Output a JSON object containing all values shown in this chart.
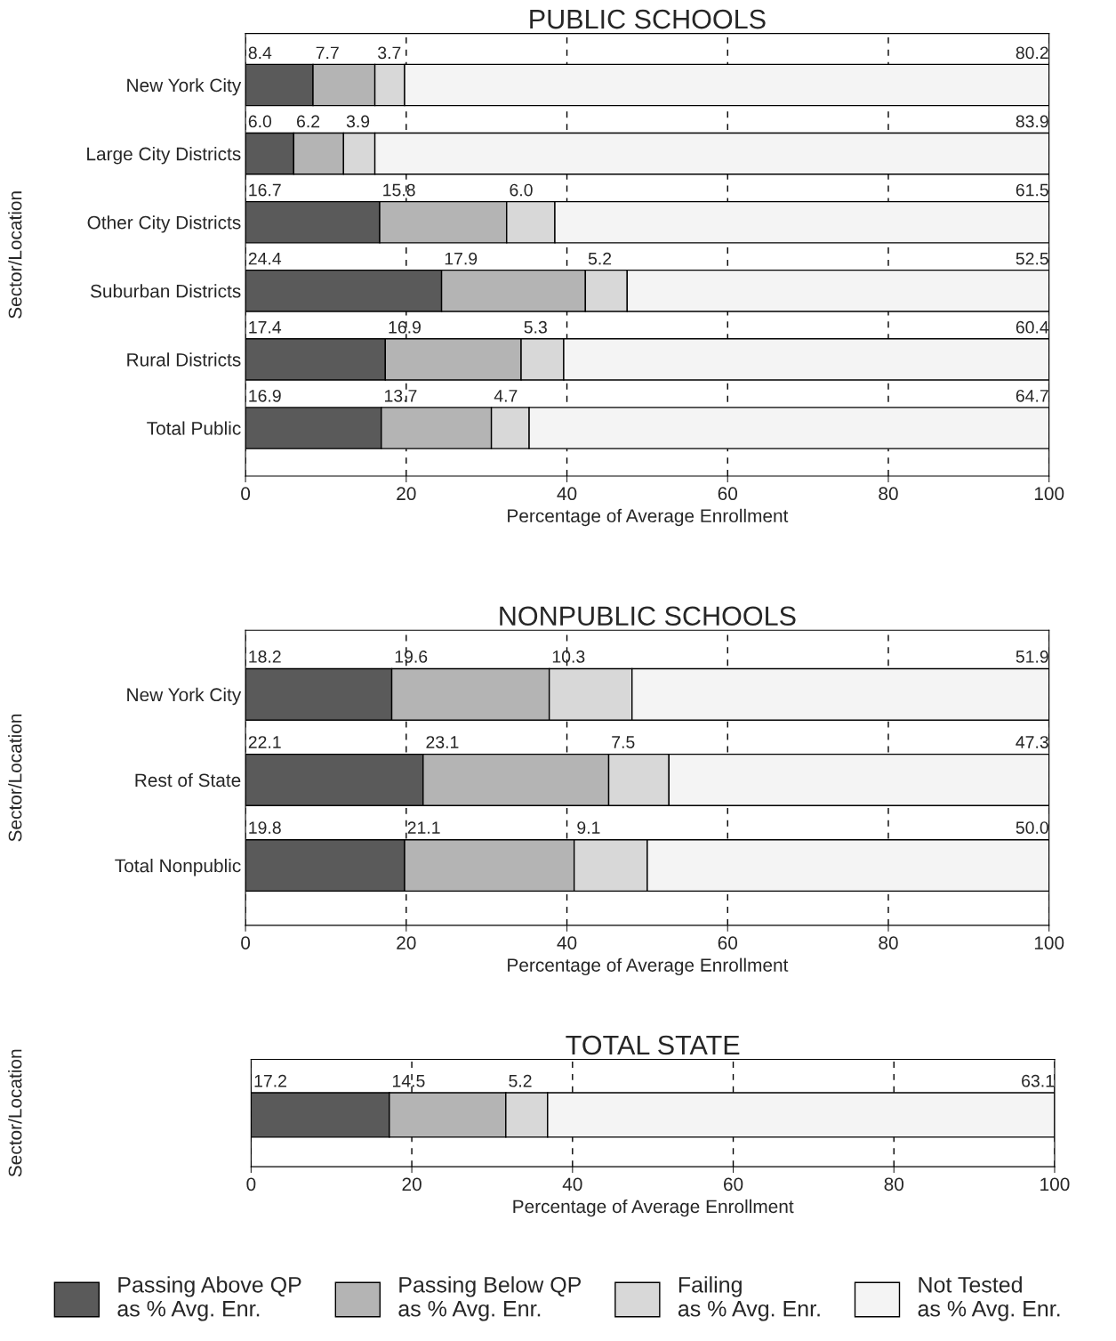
{
  "chart_data": [
    {
      "type": "bar",
      "orientation": "horizontal",
      "stacked": true,
      "title": "PUBLIC SCHOOLS",
      "xlabel": "Percentage of Average Enrollment",
      "ylabel": "Sector/Location",
      "categories": [
        "New York City",
        "Large City Districts",
        "Other City Districts",
        "Suburban Districts",
        "Rural Districts",
        "Total Public"
      ],
      "series": [
        {
          "color": "#5a5a5a",
          "values": [
            8.4,
            6.0,
            16.7,
            24.4,
            17.4,
            16.9
          ],
          "value_labels": [
            "8.4",
            "6.0",
            "16.7",
            "24.4",
            "17.4",
            "16.9"
          ]
        },
        {
          "color": "#b4b4b4",
          "values": [
            7.7,
            6.2,
            15.8,
            17.9,
            16.9,
            13.7
          ],
          "value_labels": [
            "7.7",
            "6.2",
            "15.8",
            "17.9",
            "16.9",
            "13.7"
          ]
        },
        {
          "color": "#d8d8d8",
          "values": [
            3.7,
            3.9,
            6.0,
            5.2,
            5.3,
            4.7
          ],
          "value_labels": [
            "3.7",
            "3.9",
            "6.0",
            "5.2",
            "5.3",
            "4.7"
          ]
        },
        {
          "color": "#f4f4f4",
          "values": [
            80.2,
            83.9,
            61.5,
            52.5,
            60.4,
            64.7
          ],
          "value_labels": [
            "80.2",
            "83.9",
            "61.5",
            "52.5",
            "60.4",
            "64.7"
          ]
        }
      ],
      "xlim": [
        0,
        100
      ],
      "xticks": [
        0,
        20,
        40,
        60,
        80,
        100
      ],
      "grid": "x"
    },
    {
      "type": "bar",
      "orientation": "horizontal",
      "stacked": true,
      "title": "NONPUBLIC SCHOOLS",
      "xlabel": "Percentage of Average Enrollment",
      "ylabel": "Sector/Location",
      "categories": [
        "New York City",
        "Rest of State",
        "Total Nonpublic"
      ],
      "series": [
        {
          "color": "#5a5a5a",
          "values": [
            18.2,
            22.1,
            19.8
          ],
          "value_labels": [
            "18.2",
            "22.1",
            "19.8"
          ]
        },
        {
          "color": "#b4b4b4",
          "values": [
            19.6,
            23.1,
            21.1
          ],
          "value_labels": [
            "19.6",
            "23.1",
            "21.1"
          ]
        },
        {
          "color": "#d8d8d8",
          "values": [
            10.3,
            7.5,
            9.1
          ],
          "value_labels": [
            "10.3",
            "7.5",
            "9.1"
          ]
        },
        {
          "color": "#f4f4f4",
          "values": [
            51.9,
            47.3,
            50.0
          ],
          "value_labels": [
            "51.9",
            "47.3",
            "50.0"
          ]
        }
      ],
      "xlim": [
        0,
        100
      ],
      "xticks": [
        0,
        20,
        40,
        60,
        80,
        100
      ],
      "grid": "x"
    },
    {
      "type": "bar",
      "orientation": "horizontal",
      "stacked": true,
      "title": "TOTAL STATE",
      "xlabel": "Percentage of Average Enrollment",
      "ylabel": "Sector/Location",
      "categories": [
        null
      ],
      "series": [
        {
          "name": "Passing Above QP\nas % Avg. Enr.",
          "color": "#5a5a5a",
          "values": [
            17.2
          ],
          "value_labels": [
            "17.2"
          ]
        },
        {
          "name": "Passing Below QP\nas % Avg. Enr.",
          "color": "#b4b4b4",
          "values": [
            14.5
          ],
          "value_labels": [
            "14.5"
          ]
        },
        {
          "name": "Failing\nas % Avg. Enr.",
          "color": "#d8d8d8",
          "values": [
            5.2
          ],
          "value_labels": [
            "5.2"
          ]
        },
        {
          "name": "Not Tested\nas % Avg. Enr.",
          "color": "#f4f4f4",
          "values": [
            63.1
          ],
          "value_labels": [
            "63.1"
          ]
        }
      ],
      "xlim": [
        0,
        100
      ],
      "xticks": [
        0,
        20,
        40,
        60,
        80,
        100
      ],
      "grid": "x",
      "legend": "bottom"
    }
  ]
}
